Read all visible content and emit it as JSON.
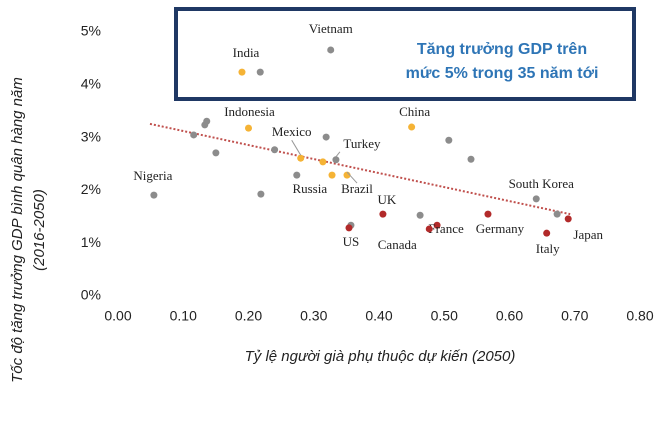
{
  "chart_data": {
    "type": "scatter",
    "xlabel": "Tỷ lệ người già phụ thuộc dự kiến (2050)",
    "ylabel": [
      "Tốc độ tăng trưởng GDP bình quân hàng năm",
      "(2016-2050)"
    ],
    "annotation": [
      "Tăng trưởng GDP trên",
      "mức 5% trong 35 năm tới"
    ],
    "xlim": [
      0,
      0.8
    ],
    "ylim": [
      0,
      5
    ],
    "xticks": [
      {
        "value": 0,
        "label": "0.00"
      },
      {
        "value": 0.1,
        "label": "0.10"
      },
      {
        "value": 0.2,
        "label": "0.20"
      },
      {
        "value": 0.3,
        "label": "0.30"
      },
      {
        "value": 0.4,
        "label": "0.40"
      },
      {
        "value": 0.5,
        "label": "0.50"
      },
      {
        "value": 0.6,
        "label": "0.60"
      },
      {
        "value": 0.7,
        "label": "0.70"
      },
      {
        "value": 0.8,
        "label": "0.80"
      }
    ],
    "yticks": [
      {
        "value": 0,
        "label": "0%"
      },
      {
        "value": 1,
        "label": "1%"
      },
      {
        "value": 2,
        "label": "2%"
      },
      {
        "value": 3,
        "label": "3%"
      },
      {
        "value": 4,
        "label": "4%"
      },
      {
        "value": 5,
        "label": "5%"
      }
    ],
    "series": [
      {
        "color": "#8c8c8c",
        "x": [
          0.055,
          0.218,
          0.326,
          0.133,
          0.136,
          0.116,
          0.15,
          0.219,
          0.24,
          0.319,
          0.334,
          0.274,
          0.507,
          0.541,
          0.641,
          0.673,
          0.463,
          0.357
        ],
        "values": [
          1.91,
          4.24,
          4.66,
          3.24,
          3.31,
          3.05,
          2.71,
          1.93,
          2.77,
          3.01,
          2.58,
          2.29,
          2.95,
          2.59,
          1.84,
          1.55,
          1.53,
          1.34
        ],
        "labels": [
          "Nigeria",
          null,
          "Vietnam",
          null,
          null,
          null,
          null,
          null,
          null,
          null,
          "Turkey",
          "Russia",
          null,
          null,
          "South Korea",
          null,
          null,
          null
        ]
      },
      {
        "color": "#f5b335",
        "x": [
          0.19,
          0.2,
          0.28,
          0.314,
          0.328,
          0.351,
          0.45
        ],
        "values": [
          4.24,
          3.18,
          2.61,
          2.54,
          2.29,
          2.29,
          3.2
        ],
        "labels": [
          "India",
          "Indonesia",
          "Mexico",
          null,
          null,
          "Brazil",
          "China"
        ]
      },
      {
        "color": "#b22a2a",
        "x": [
          0.69,
          0.657,
          0.567,
          0.489,
          0.477,
          0.406,
          0.354
        ],
        "values": [
          1.46,
          1.19,
          1.55,
          1.34,
          1.27,
          1.55,
          1.29
        ],
        "labels": [
          "Japan",
          "Italy",
          "Germany",
          "France",
          "Canada",
          "UK",
          "US"
        ]
      }
    ],
    "trendline": {
      "color": "#c0504d",
      "x": [
        0.049,
        0.693
      ],
      "values": [
        3.26,
        1.55
      ]
    }
  }
}
